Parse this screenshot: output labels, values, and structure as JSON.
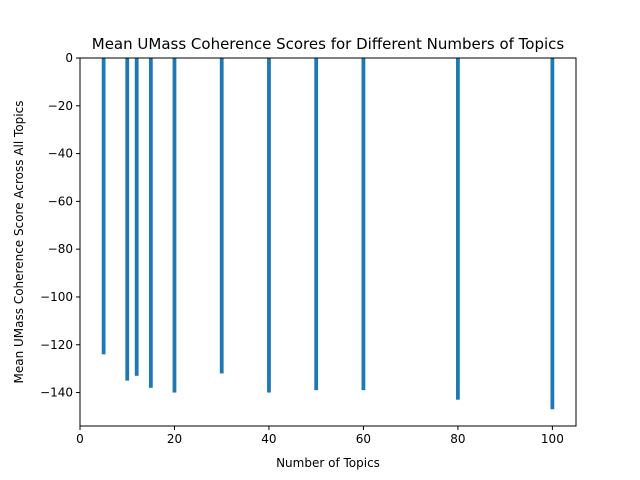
{
  "chart_data": {
    "type": "bar",
    "title": "Mean UMass Coherence Scores for Different Numbers of Topics",
    "xlabel": "Number of Topics",
    "ylabel": "Mean UMass Coherence Score Across All Topics",
    "xlim": [
      0,
      105
    ],
    "ylim": [
      -154,
      0
    ],
    "xticks": [
      0,
      20,
      40,
      60,
      80,
      100
    ],
    "yticks": [
      0,
      -20,
      -40,
      -60,
      -80,
      -100,
      -120,
      -140
    ],
    "x": [
      5,
      10,
      12,
      15,
      20,
      30,
      40,
      50,
      60,
      80,
      100
    ],
    "values": [
      -124,
      -135,
      -133,
      -138,
      -140,
      -132,
      -140,
      -139,
      -139,
      -143,
      -147
    ],
    "bar_width": 0.8,
    "grid": false,
    "colors": {
      "bar": "#1f77b4"
    }
  }
}
